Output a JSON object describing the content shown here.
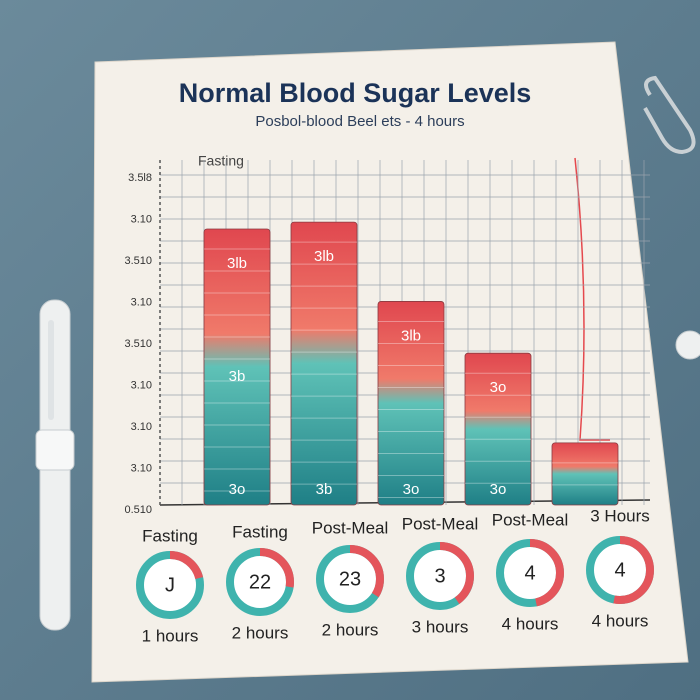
{
  "chart_data": {
    "type": "bar",
    "title": "Normal Blood Sugar Levels",
    "subtitle": "Posbol-blood  Beel  ets  -  4 hours",
    "annotation": "Fasting",
    "y_axis_labels": [
      "3.5l8",
      "3.10",
      "3.510",
      "3.10",
      "3.510",
      "3.10",
      "3.10",
      "3.10",
      "0.510"
    ],
    "categories": [
      "Fasting",
      "Fasting",
      "Post-Meal",
      "Post-Meal",
      "Post-Meal",
      "3 Hours"
    ],
    "values": [
      null,
      80,
      82,
      59,
      44,
      18
    ],
    "bar_texts": [
      [],
      [
        "3lb",
        "3b",
        "3o"
      ],
      [
        "3lb",
        "3b"
      ],
      [
        "3lb",
        "3o"
      ],
      [
        "3o",
        "3o"
      ],
      []
    ],
    "gauge_labels": [
      "J",
      "22",
      "23",
      "3",
      "4",
      "4"
    ],
    "hour_labels": [
      "1 hours",
      "2 hours",
      "2 hours",
      "3 hours",
      "4 hours",
      "4 hours"
    ],
    "ylim": [
      0,
      100
    ],
    "grid": true
  }
}
